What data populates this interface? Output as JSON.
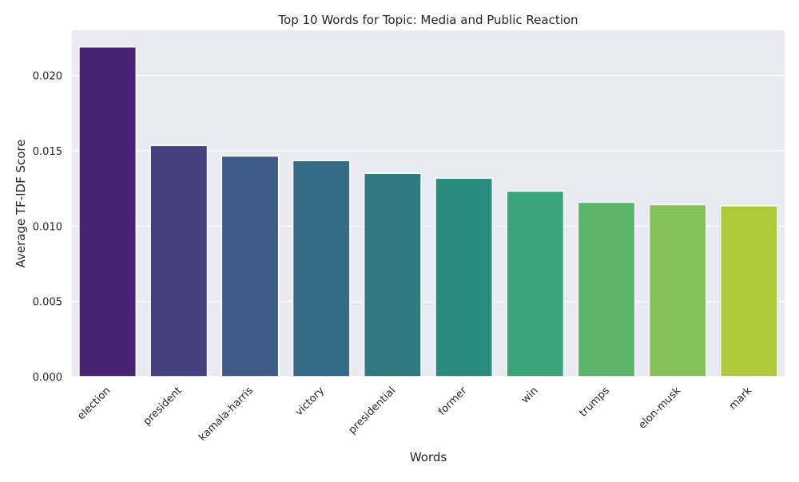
{
  "chart_data": {
    "type": "bar",
    "title": "Top 10 Words for Topic: Media and Public Reaction",
    "xlabel": "Words",
    "ylabel": "Average TF-IDF Score",
    "categories": [
      "election",
      "president",
      "kamala-harris",
      "victory",
      "presidential",
      "former",
      "win",
      "trumps",
      "elon-musk",
      "mark"
    ],
    "values": [
      0.0219,
      0.01535,
      0.01465,
      0.01435,
      0.0135,
      0.01318,
      0.01232,
      0.01158,
      0.01142,
      0.01135
    ],
    "ylim": [
      0,
      0.023
    ],
    "yticks": [
      "0.000",
      "0.005",
      "0.010",
      "0.015",
      "0.020"
    ],
    "grid": true,
    "colors": {
      "plot_background": "#eaeaf2",
      "grid": "#ffffff",
      "bars": [
        "#482373",
        "#463f7d",
        "#3e5a86",
        "#366b87",
        "#2e7a80",
        "#2a8c7e",
        "#3aa57a",
        "#5bb66c",
        "#86c25a",
        "#b0c93b"
      ]
    }
  }
}
